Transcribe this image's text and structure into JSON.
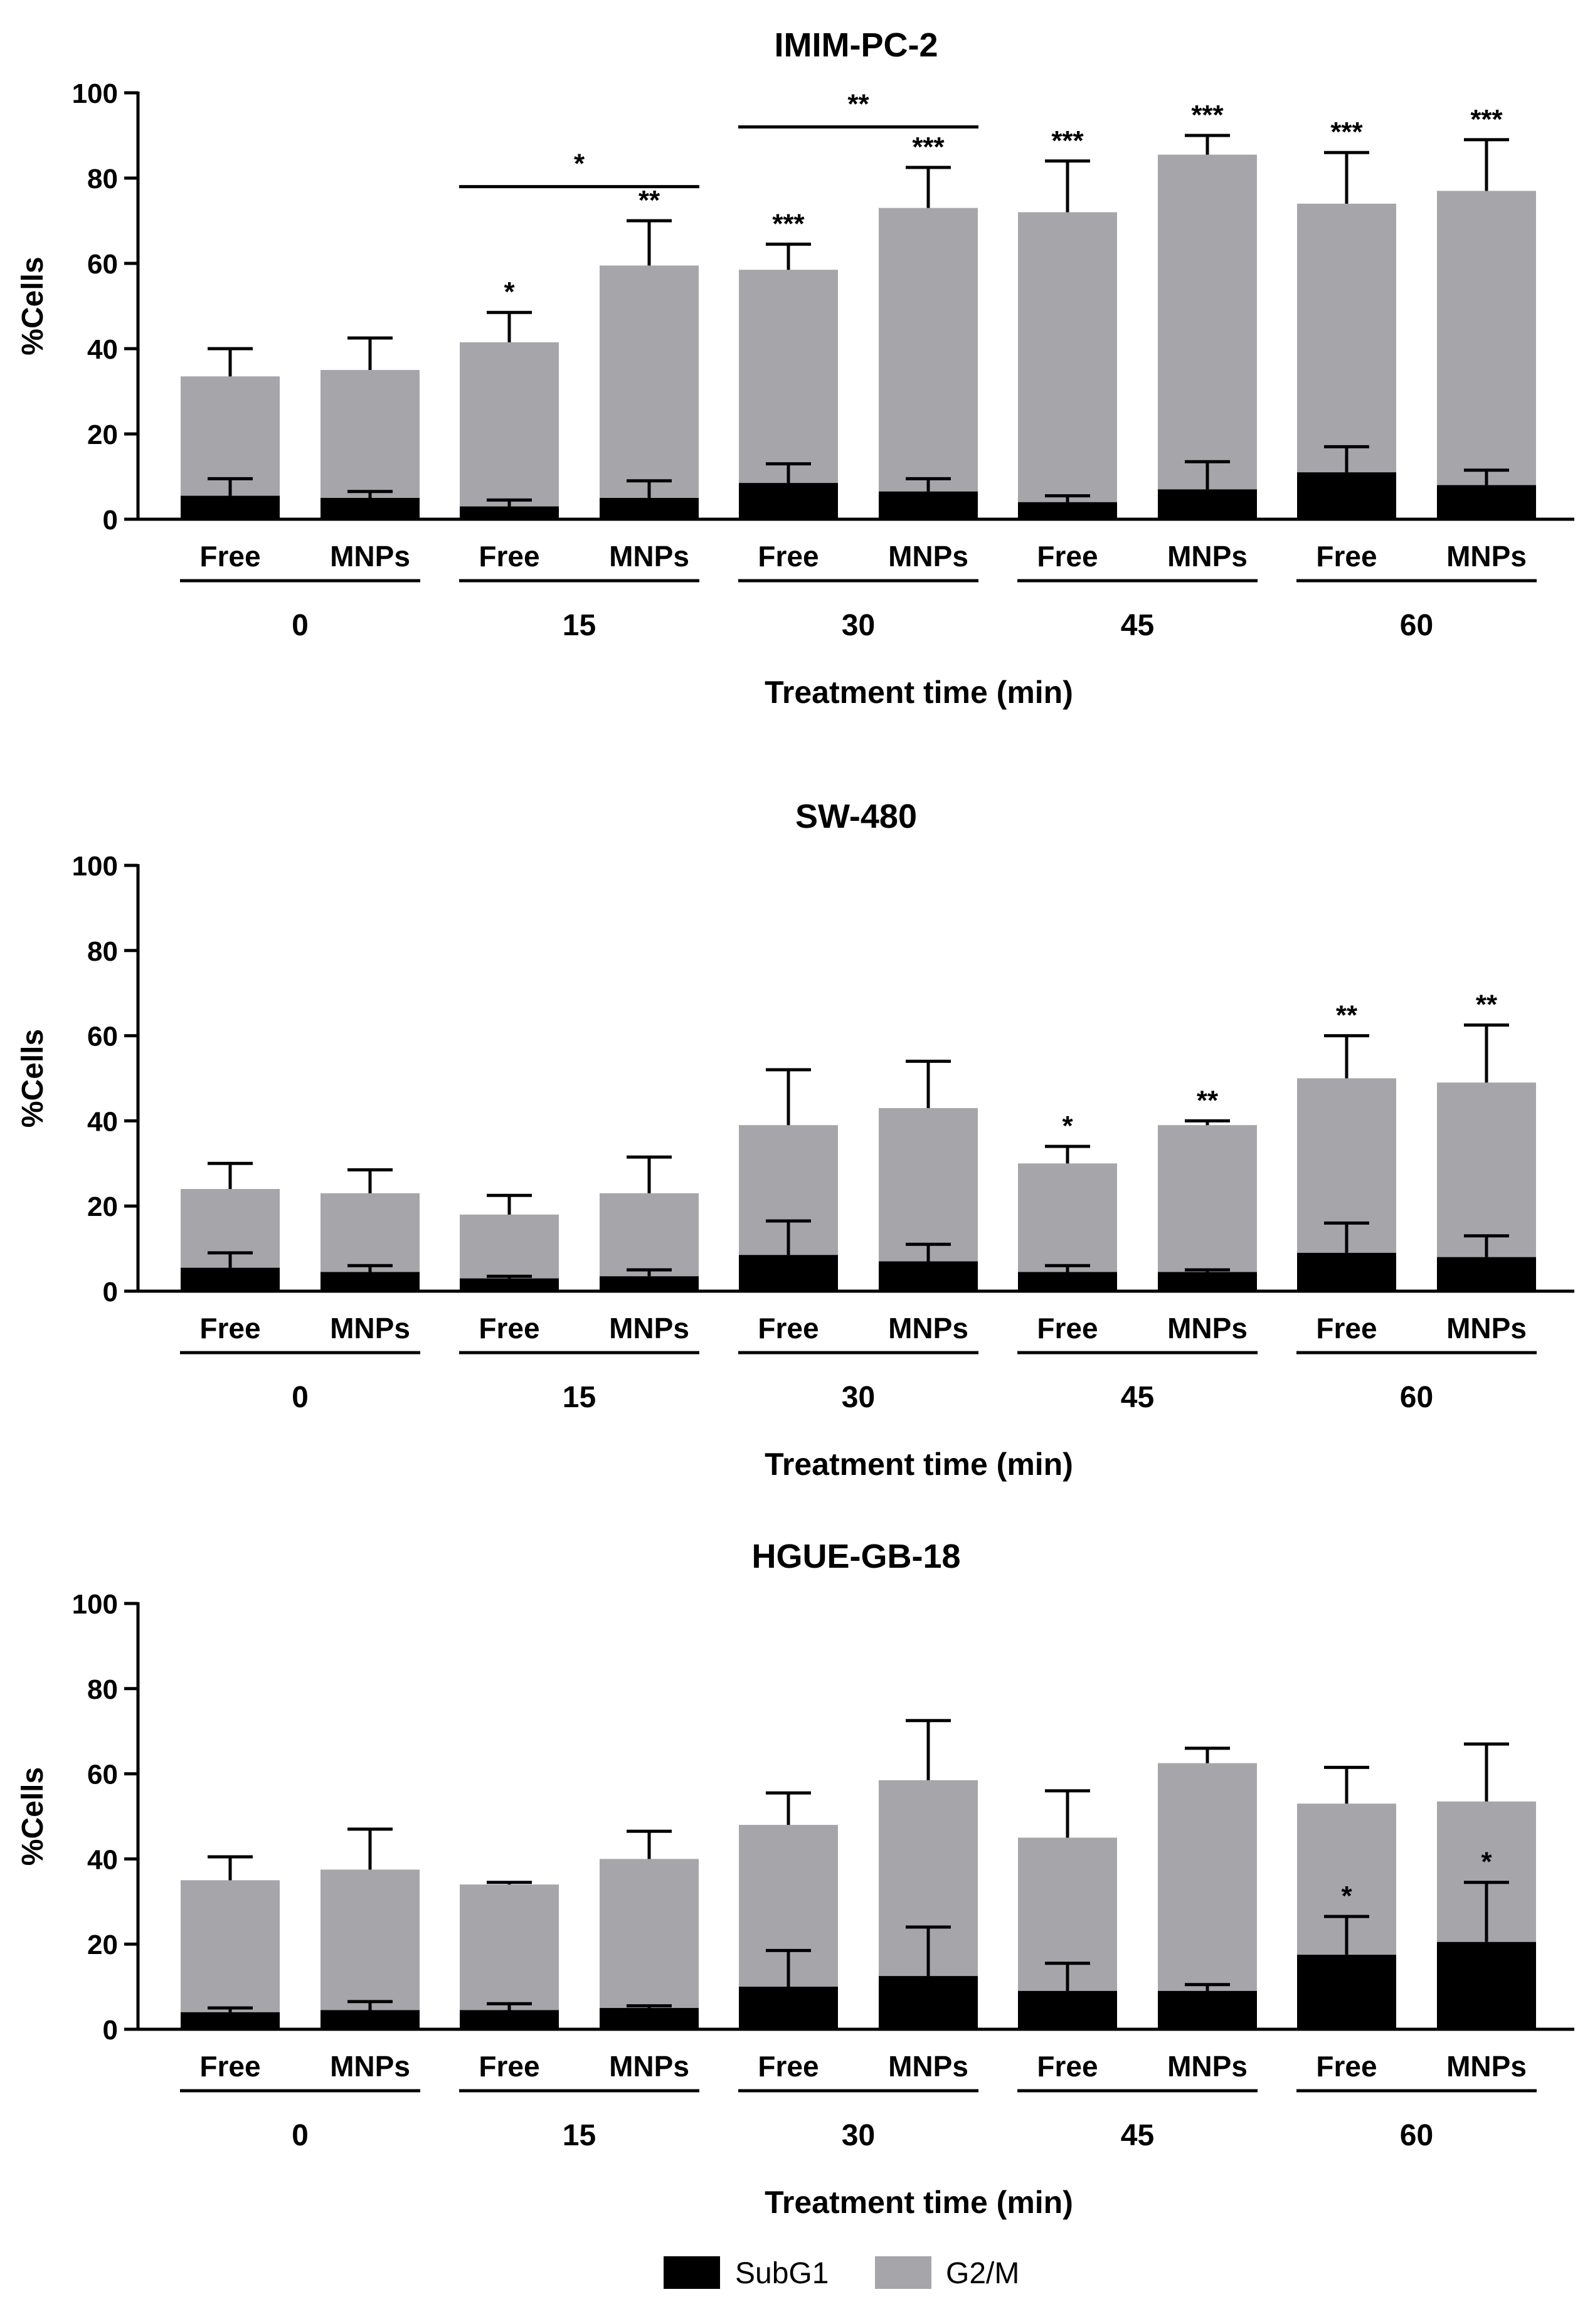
{
  "chart_data": [
    {
      "type": "bar",
      "stacked": true,
      "title": "IMIM-PC-2",
      "ylabel": "%Cells",
      "xlabel": "Treatment time (min)",
      "ylim": [
        0,
        100
      ],
      "yticks": [
        "0",
        "20",
        "40",
        "60",
        "80",
        "100"
      ],
      "time_groups": [
        "0",
        "15",
        "30",
        "45",
        "60"
      ],
      "categories": [
        "Free",
        "MNPs",
        "Free",
        "MNPs",
        "Free",
        "MNPs",
        "Free",
        "MNPs",
        "Free",
        "MNPs"
      ],
      "series": [
        {
          "name": "SubG1",
          "values": [
            5.5,
            5,
            3,
            5,
            8.5,
            6.5,
            4,
            7,
            11,
            8
          ],
          "errors": [
            9.5,
            6.5,
            4.5,
            9,
            13,
            9.5,
            5.5,
            13.5,
            17,
            11.5
          ]
        },
        {
          "name": "G2/M",
          "totals": [
            33.5,
            35,
            41.5,
            59.5,
            58.5,
            73,
            72,
            85.5,
            74,
            77
          ],
          "errors": [
            40,
            42.5,
            48.5,
            70,
            64.5,
            82.5,
            84,
            90,
            86,
            89
          ]
        }
      ],
      "bar_annotations": [
        "",
        "",
        "*",
        "**",
        "***",
        "***",
        "***",
        "***",
        "***",
        "***"
      ],
      "brackets": [
        {
          "from": 2,
          "to": 3,
          "y": 78,
          "label": "*"
        },
        {
          "from": 4,
          "to": 5,
          "y": 92,
          "label": "**"
        }
      ]
    },
    {
      "type": "bar",
      "stacked": true,
      "title": "SW-480",
      "ylabel": "%Cells",
      "xlabel": "Treatment time (min)",
      "ylim": [
        0,
        100
      ],
      "yticks": [
        "0",
        "20",
        "40",
        "60",
        "80",
        "100"
      ],
      "time_groups": [
        "0",
        "15",
        "30",
        "45",
        "60"
      ],
      "categories": [
        "Free",
        "MNPs",
        "Free",
        "MNPs",
        "Free",
        "MNPs",
        "Free",
        "MNPs",
        "Free",
        "MNPs"
      ],
      "series": [
        {
          "name": "SubG1",
          "values": [
            5.5,
            4.5,
            3,
            3.5,
            8.5,
            7,
            4.5,
            4.5,
            9,
            8
          ],
          "errors": [
            9,
            6,
            3.5,
            5,
            16.5,
            11,
            6,
            5,
            16,
            13
          ]
        },
        {
          "name": "G2/M",
          "totals": [
            24,
            23,
            18,
            23,
            39,
            43,
            30,
            39,
            50,
            49
          ],
          "errors": [
            30,
            28.5,
            22.5,
            31.5,
            52,
            54,
            34,
            40,
            60,
            62.5
          ]
        }
      ],
      "bar_annotations": [
        "",
        "",
        "",
        "",
        "",
        "",
        "*",
        "**",
        "**",
        "**"
      ],
      "brackets": []
    },
    {
      "type": "bar",
      "stacked": true,
      "title": "HGUE-GB-18",
      "ylabel": "%Cells",
      "xlabel": "Treatment time (min)",
      "ylim": [
        0,
        100
      ],
      "yticks": [
        "0",
        "20",
        "40",
        "60",
        "80",
        "100"
      ],
      "time_groups": [
        "0",
        "15",
        "30",
        "45",
        "60"
      ],
      "categories": [
        "Free",
        "MNPs",
        "Free",
        "MNPs",
        "Free",
        "MNPs",
        "Free",
        "MNPs",
        "Free",
        "MNPs"
      ],
      "series": [
        {
          "name": "SubG1",
          "values": [
            4,
            4.5,
            4.5,
            5,
            10,
            12.5,
            9,
            9,
            17.5,
            20.5
          ],
          "errors": [
            5,
            6.5,
            6,
            5.5,
            18.5,
            24,
            15.5,
            10.5,
            26.5,
            34.5
          ]
        },
        {
          "name": "G2/M",
          "totals": [
            35,
            37.5,
            34,
            40,
            48,
            58.5,
            45,
            62.5,
            53,
            53.5
          ],
          "errors": [
            40.5,
            47,
            34.5,
            46.5,
            55.5,
            72.5,
            56,
            66,
            61.5,
            67
          ]
        }
      ],
      "bar_annotations": [
        "",
        "",
        "",
        "",
        "",
        "",
        "",
        "",
        "*",
        "*"
      ],
      "annotation_on_subg1": [
        false,
        false,
        false,
        false,
        false,
        false,
        false,
        false,
        true,
        true
      ],
      "brackets": []
    }
  ],
  "legend": [
    {
      "label": "SubG1",
      "color": "#000000"
    },
    {
      "label": "G2/M",
      "color": "#a6a5aa"
    }
  ],
  "colors": {
    "subg1": "#000000",
    "g2m": "#a6a5aa",
    "axis": "#000000"
  }
}
